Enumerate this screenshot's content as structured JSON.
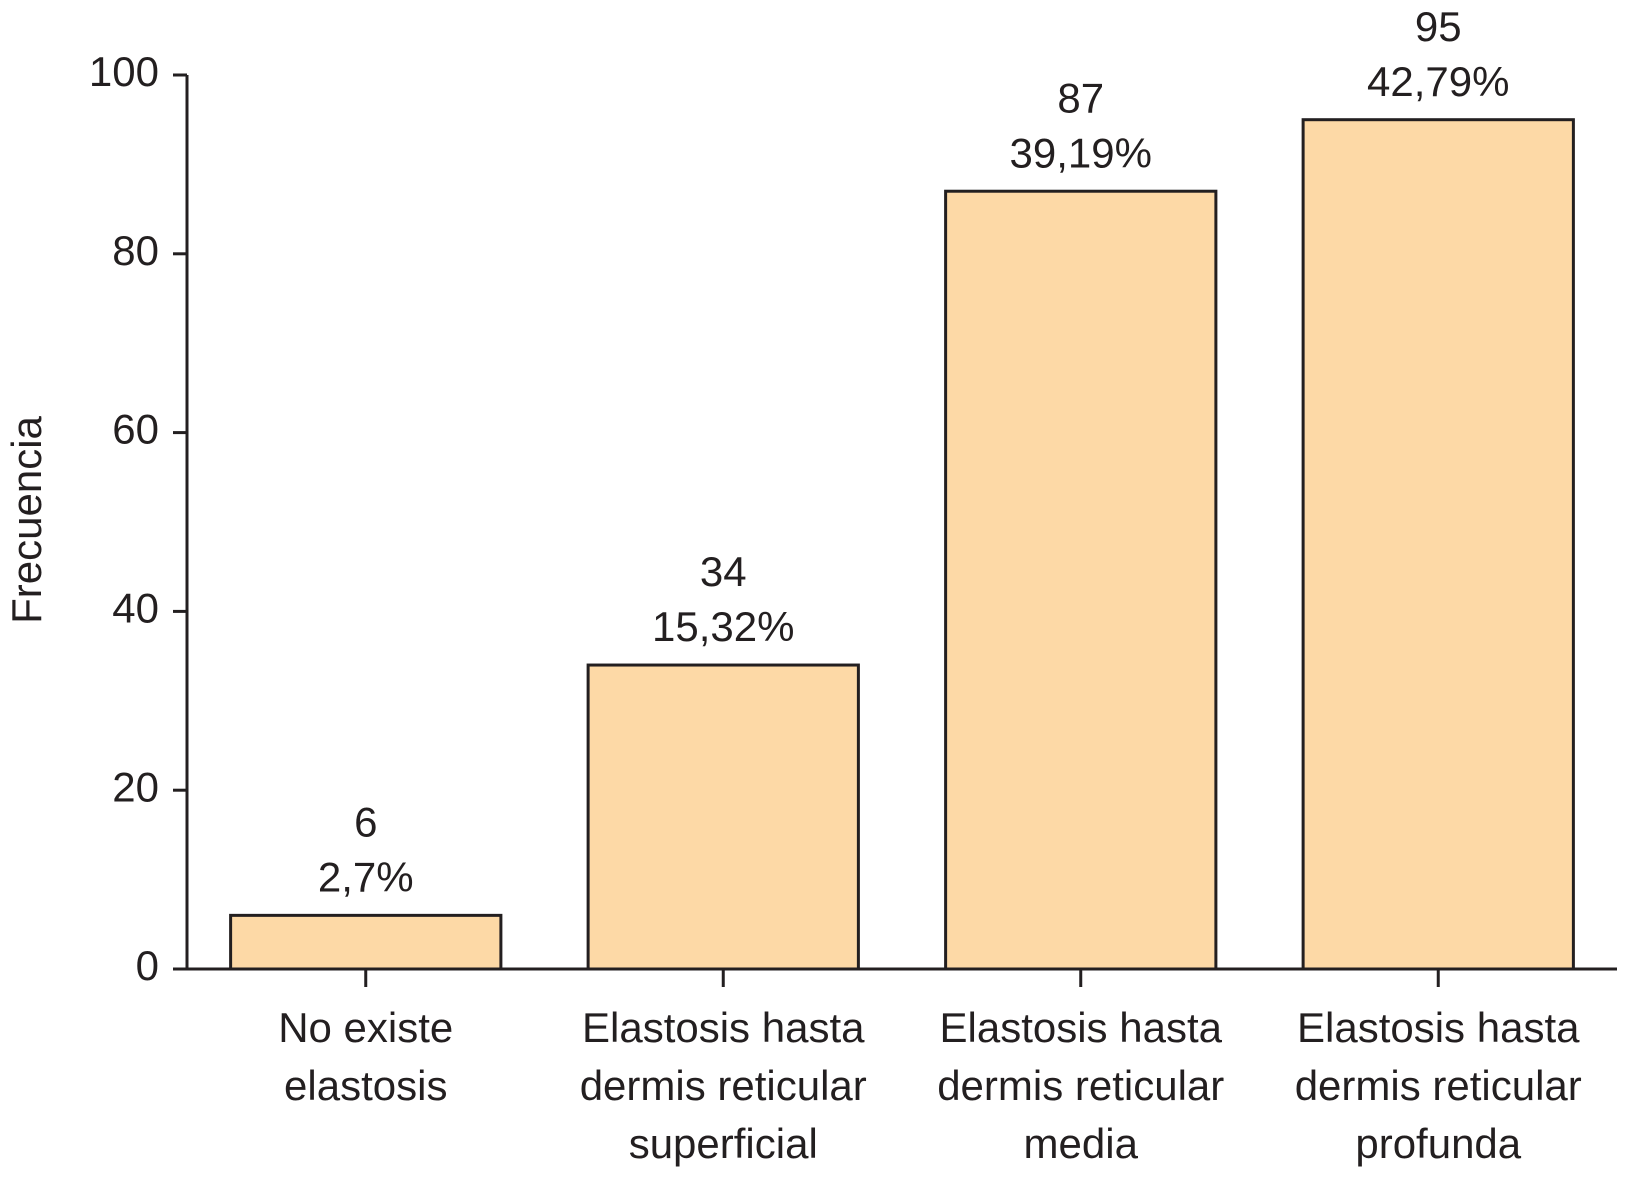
{
  "chart_data": {
    "type": "bar",
    "y_label": "Frecuencia",
    "categories": [
      [
        "No existe",
        "elastosis"
      ],
      [
        "Elastosis hasta",
        "dermis reticular",
        "superficial"
      ],
      [
        "Elastosis hasta",
        "dermis reticular",
        "media"
      ],
      [
        "Elastosis hasta",
        "dermis reticular",
        "profunda"
      ]
    ],
    "values": [
      6,
      34,
      87,
      95
    ],
    "percentages": {
      "values": [
        2.7,
        15.32,
        39.19,
        42.79
      ],
      "value_labels": [
        "2,7%",
        "15,32%",
        "39,19%",
        "42,79%"
      ]
    },
    "color": "#fdd9a6",
    "ylim": [
      0,
      100
    ],
    "yticks": [
      0,
      20,
      40,
      60,
      80,
      100
    ],
    "grid": false
  }
}
